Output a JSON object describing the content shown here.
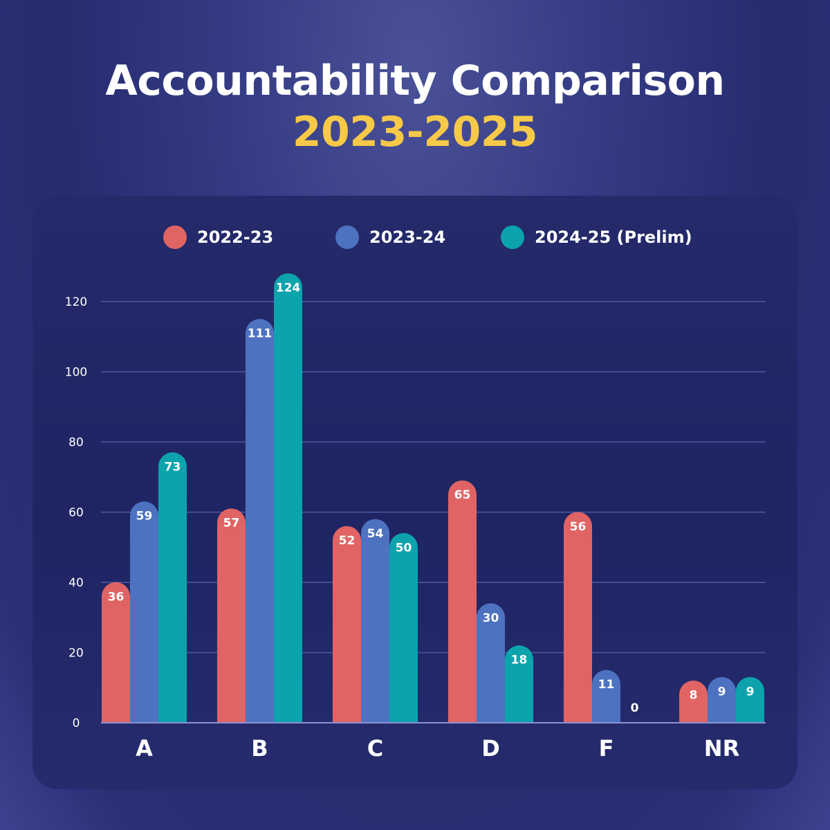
{
  "title": {
    "line1": "Accountability Comparison",
    "line2": "2023-2025"
  },
  "colors": {
    "title_accent": "#f7c948",
    "grid": "#5058a3",
    "axis": "#8d93d4"
  },
  "chart_data": {
    "type": "bar",
    "title": "Accountability Comparison 2023-2025",
    "xlabel": "",
    "ylabel": "",
    "categories": [
      "A",
      "B",
      "C",
      "D",
      "F",
      "NR"
    ],
    "ylim": [
      0,
      120
    ],
    "yticks": [
      0,
      20,
      40,
      60,
      80,
      100,
      120
    ],
    "grid": true,
    "legend_position": "top-center",
    "series": [
      {
        "name": "2022-23",
        "color": "#e06464",
        "values": [
          36,
          57,
          52,
          65,
          56,
          8
        ]
      },
      {
        "name": "2023-24",
        "color": "#4c72c0",
        "values": [
          59,
          111,
          54,
          30,
          11,
          9
        ]
      },
      {
        "name": "2024-25 (Prelim)",
        "color": "#0ca3ad",
        "values": [
          73,
          124,
          50,
          18,
          0,
          9
        ]
      }
    ]
  }
}
